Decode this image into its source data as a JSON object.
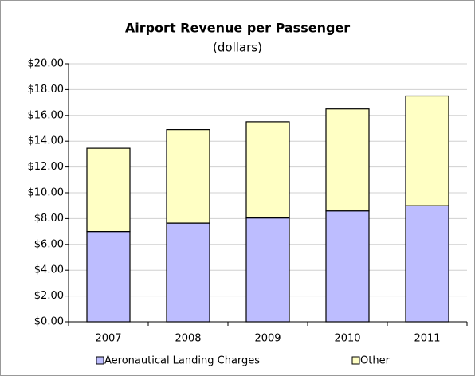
{
  "chart_data": {
    "type": "stacked_bar",
    "title": "Airport Revenue per Passenger",
    "subtitle": "(dollars)",
    "categories": [
      "2007",
      "2008",
      "2009",
      "2010",
      "2011"
    ],
    "series": [
      {
        "name": "Aeronautical Landing Charges",
        "color": "#bdbdff",
        "values": [
          7.0,
          7.65,
          8.05,
          8.6,
          9.0
        ]
      },
      {
        "name": "Other",
        "color": "#ffffc4",
        "values": [
          6.45,
          7.25,
          7.45,
          7.9,
          8.5
        ]
      }
    ],
    "ylim": [
      0,
      20
    ],
    "yticks": [
      {
        "value": 0,
        "label": "$0.00"
      },
      {
        "value": 2,
        "label": "$2.00"
      },
      {
        "value": 4,
        "label": "$4.00"
      },
      {
        "value": 6,
        "label": "$6.00"
      },
      {
        "value": 8,
        "label": "$8.00"
      },
      {
        "value": 10,
        "label": "$10.00"
      },
      {
        "value": 12,
        "label": "$12.00"
      },
      {
        "value": 14,
        "label": "$14.00"
      },
      {
        "value": 16,
        "label": "$16.00"
      },
      {
        "value": 18,
        "label": "$18.00"
      },
      {
        "value": 20,
        "label": "$20.00"
      }
    ],
    "grid": true,
    "legend": "bottom"
  }
}
